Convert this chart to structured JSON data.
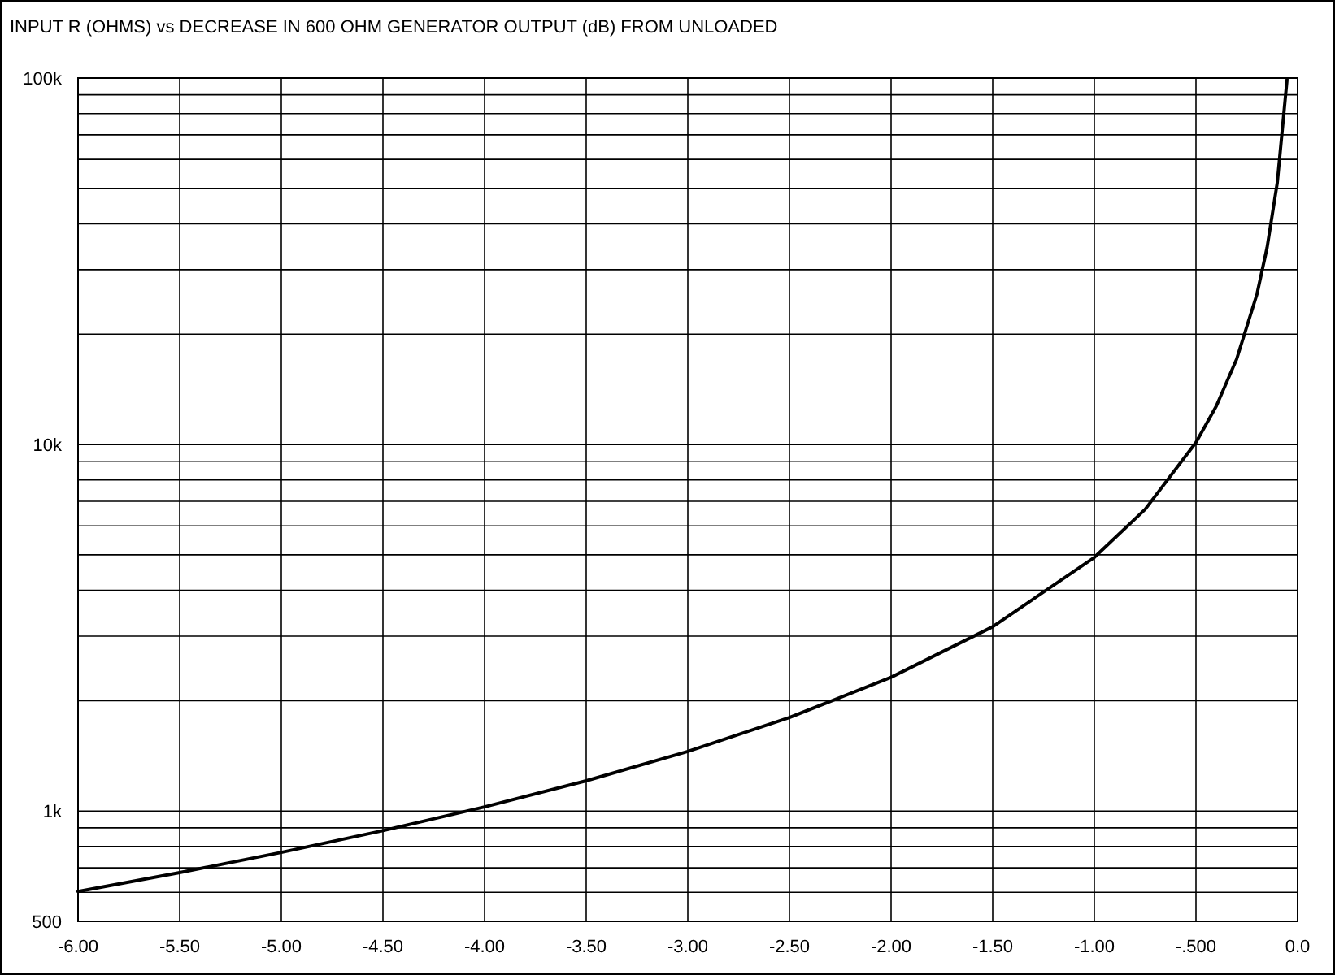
{
  "chart_data": {
    "type": "line",
    "title": "INPUT R (OHMS) vs DECREASE IN 600 OHM GENERATOR OUTPUT (dB) FROM UNLOADED",
    "x": [
      -6,
      -5.5,
      -5,
      -4.5,
      -4,
      -3.5,
      -3,
      -2.5,
      -2,
      -1.5,
      -1,
      -0.75,
      -0.5,
      -0.4,
      -0.3,
      -0.2,
      -0.15,
      -0.1,
      -0.052
    ],
    "series": [
      {
        "color": "#000000",
        "values": [
          603,
          679,
          771,
          884,
          1026,
          1209,
          1454,
          1799,
          2317,
          3183,
          4920,
          6655,
          10130,
          12730,
          17100,
          25720,
          34490,
          51800,
          99000
        ]
      }
    ],
    "xlim": [
      -6,
      0
    ],
    "ylim": [
      500,
      100000
    ],
    "log": "y",
    "grid": true,
    "marker": "none",
    "line_style": "solid",
    "xticks": [
      {
        "value": -6,
        "label": "-6.00"
      },
      {
        "value": -5.5,
        "label": "-5.50"
      },
      {
        "value": -5,
        "label": "-5.00"
      },
      {
        "value": -4.5,
        "label": "-4.50"
      },
      {
        "value": -4,
        "label": "-4.00"
      },
      {
        "value": -3.5,
        "label": "-3.50"
      },
      {
        "value": -3,
        "label": "-3.00"
      },
      {
        "value": -2.5,
        "label": "-2.50"
      },
      {
        "value": -2,
        "label": "-2.00"
      },
      {
        "value": -1.5,
        "label": "-1.50"
      },
      {
        "value": -1,
        "label": "-1.00"
      },
      {
        "value": -0.5,
        "label": "-.500"
      },
      {
        "value": 0,
        "label": "0.0"
      }
    ],
    "yticks": [
      500,
      {
        "value": 600,
        "label": null
      },
      {
        "value": 700,
        "label": null
      },
      {
        "value": 800,
        "label": null
      },
      {
        "value": 900,
        "label": null
      },
      {
        "value": 1000,
        "label": "1k"
      },
      {
        "value": 2000,
        "label": null
      },
      {
        "value": 3000,
        "label": null
      },
      {
        "value": 4000,
        "label": null
      },
      {
        "value": 5000,
        "label": null
      },
      {
        "value": 6000,
        "label": null
      },
      {
        "value": 7000,
        "label": null
      },
      {
        "value": 8000,
        "label": null
      },
      {
        "value": 9000,
        "label": null
      },
      {
        "value": 10000,
        "label": "10k"
      },
      {
        "value": 20000,
        "label": null
      },
      {
        "value": 30000,
        "label": null
      },
      {
        "value": 40000,
        "label": null
      },
      {
        "value": 50000,
        "label": null
      },
      {
        "value": 60000,
        "label": null
      },
      {
        "value": 70000,
        "label": null
      },
      {
        "value": 80000,
        "label": null
      },
      {
        "value": 90000,
        "label": null
      },
      {
        "value": 100000,
        "label": "100k"
      }
    ]
  }
}
